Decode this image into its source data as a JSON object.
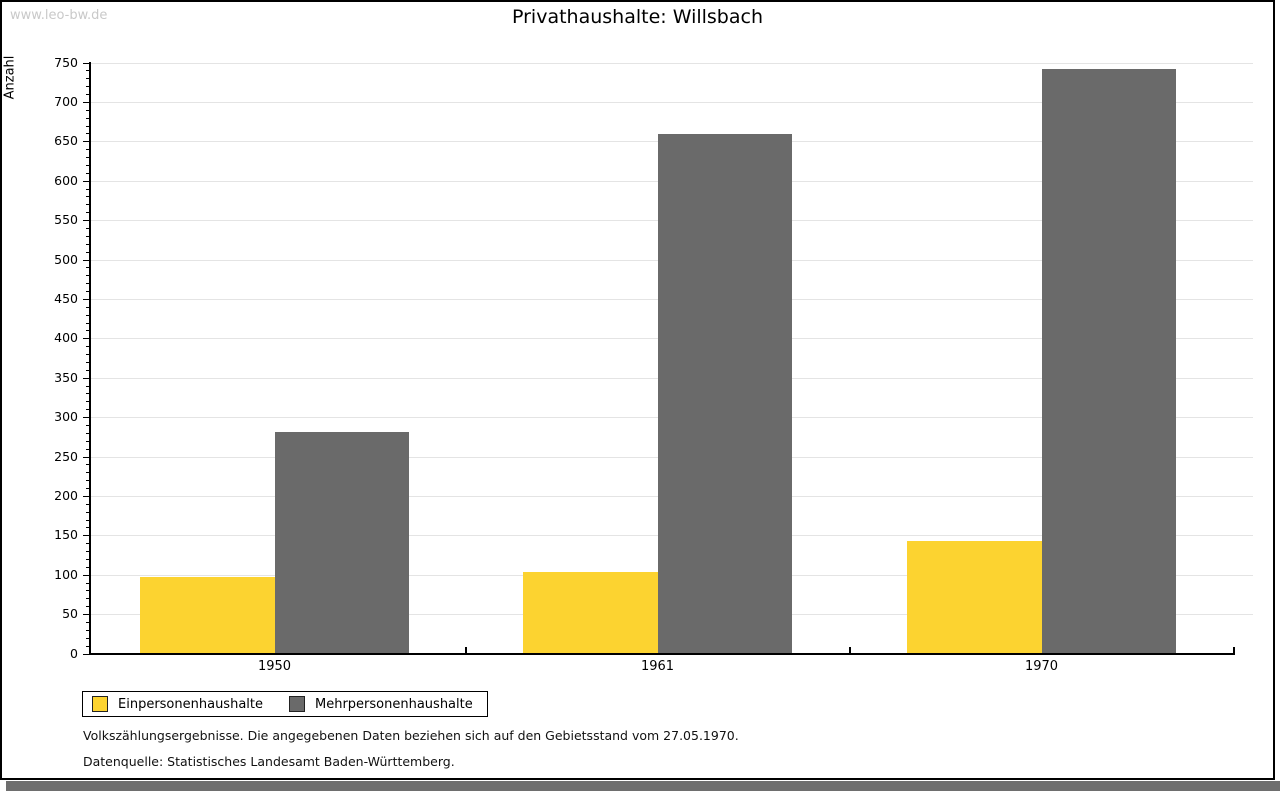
{
  "watermark": "www.leo-bw.de",
  "header": {
    "title": "Privathaushalte: Willsbach"
  },
  "chart_data": {
    "type": "bar",
    "title": "Privathaushalte: Willsbach",
    "categories": [
      "1950",
      "1961",
      "1970"
    ],
    "series": [
      {
        "name": "Einpersonenhaushalte",
        "color": "#fcd330",
        "values": [
          97,
          104,
          143
        ]
      },
      {
        "name": "Mehrpersonenhaushalte",
        "color": "#6a6a6a",
        "values": [
          281,
          659,
          742
        ]
      }
    ],
    "xlabel": "",
    "ylabel": "Anzahl",
    "ylim": [
      0,
      750
    ],
    "ytick_major": 50,
    "ytick_minor": 10,
    "grid": "horizontal-major",
    "legend_position": "bottom-left"
  },
  "footnotes": {
    "line1": "Volkszählungsergebnisse. Die angegebenen Daten beziehen sich auf den Gebietsstand vom 27.05.1970.",
    "line2": "Datenquelle: Statistisches Landesamt Baden-Württemberg."
  },
  "colors": {
    "bar_yellow": "#fcd330",
    "bar_gray": "#6a6a6a",
    "gridline": "#e4e4e4",
    "frame_border": "#000000",
    "shadow_strip": "#6e6e6e",
    "watermark": "#c9c9c9"
  }
}
